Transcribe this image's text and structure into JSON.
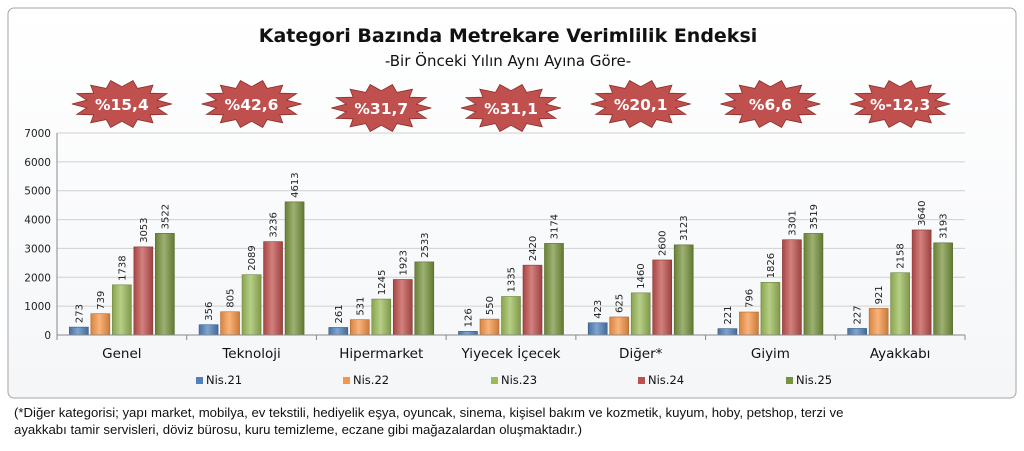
{
  "chart_data": {
    "type": "bar",
    "title": "Kategori Bazında Metrekare Verimlilik Endeksi",
    "subtitle": "-Bir Önceki Yılın Aynı Ayına Göre-",
    "categories": [
      "Genel",
      "Teknoloji",
      "Hipermarket",
      "Yiyecek İçecek",
      "Diğer*",
      "Giyim",
      "Ayakkabı"
    ],
    "changes": [
      "%15,4",
      "%42,6",
      "%31,7",
      "%31,1",
      "%20,1",
      "%6,6",
      "%-12,3"
    ],
    "series": [
      {
        "name": "Nis.21",
        "color": "#4f81bd",
        "values": [
          273,
          356,
          261,
          126,
          423,
          221,
          227
        ]
      },
      {
        "name": "Nis.22",
        "color": "#f79646",
        "values": [
          739,
          805,
          531,
          550,
          625,
          796,
          921
        ]
      },
      {
        "name": "Nis.23",
        "color": "#9bbb59",
        "values": [
          1738,
          2089,
          1245,
          1335,
          1460,
          1826,
          2158
        ]
      },
      {
        "name": "Nis.24",
        "color": "#c0504d",
        "values": [
          3053,
          3236,
          1923,
          2420,
          2600,
          3301,
          3640
        ]
      },
      {
        "name": "Nis.25",
        "color": "#77933c",
        "values": [
          3522,
          4613,
          2533,
          3174,
          3123,
          3519,
          3193
        ]
      }
    ],
    "ylim": [
      0,
      7000
    ],
    "yticks": [
      0,
      1000,
      2000,
      3000,
      4000,
      5000,
      6000,
      7000
    ],
    "grid": true,
    "legend": "bottom",
    "badge_color": "#c0504d"
  },
  "footnote": {
    "line1": "(*Diğer kategorisi; yapı market, mobilya, ev tekstili, hediyelik eşya, oyuncak, sinema, kişisel bakım ve kozmetik, kuyum, hoby, petshop, terzi ve",
    "line2": "ayakkabı tamir servisleri, döviz bürosu, kuru temizleme, eczane gibi mağazalardan oluşmaktadır.)"
  }
}
